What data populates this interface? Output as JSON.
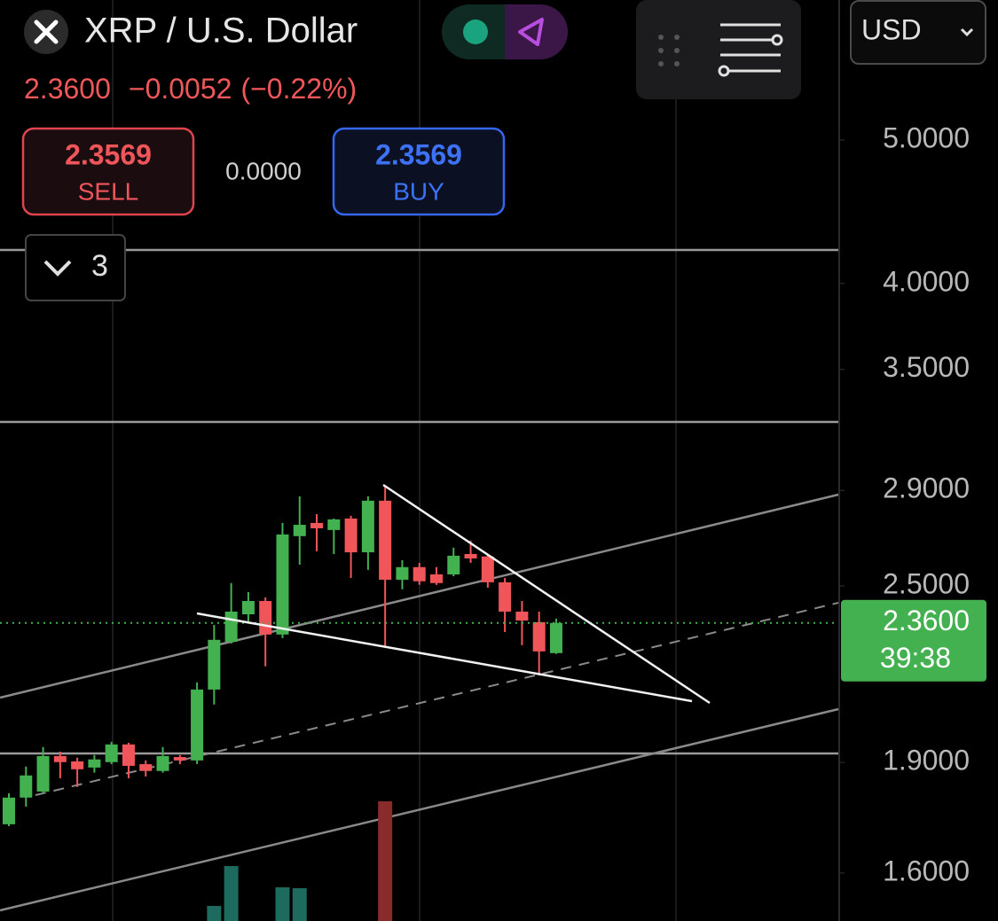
{
  "header": {
    "title": "XRP / U.S. Dollar",
    "price": "2.3600",
    "change": "−0.0052",
    "change_pct": "(−0.22%)",
    "currency": "USD"
  },
  "trade": {
    "sell_price": "2.3569",
    "sell_label": "SELL",
    "spread": "0.0000",
    "buy_price": "2.3569",
    "buy_label": "BUY"
  },
  "indicators": {
    "count": "3"
  },
  "chart_data": {
    "type": "candlestick",
    "log_scale": true,
    "ylim": [
      1.485,
      6.215
    ],
    "yticks": [
      {
        "value": 5,
        "label": "5.0000"
      },
      {
        "value": 4,
        "label": "4.0000"
      },
      {
        "value": 3.5,
        "label": "3.5000"
      },
      {
        "value": 2.9,
        "label": "2.9000"
      },
      {
        "value": 2.5,
        "label": "2.5000"
      },
      {
        "value": 1.9,
        "label": "1.9000"
      },
      {
        "value": 1.6,
        "label": "1.6000"
      }
    ],
    "up_color": "#43b14f",
    "down_color": "#f0555a",
    "open": [
      1.726,
      1.799,
      1.816,
      1.919,
      1.903,
      1.885,
      1.901,
      1.954,
      1.895,
      1.875,
      1.916,
      1.906,
      2.128,
      2.292,
      2.392,
      2.442,
      2.318,
      2.701,
      2.757,
      2.727,
      2.776,
      2.634,
      2.854,
      2.524,
      2.574,
      2.545,
      2.545,
      2.627,
      2.617,
      2.514,
      2.402,
      2.363,
      2.252
    ],
    "high": [
      1.811,
      1.888,
      1.946,
      1.932,
      1.914,
      1.922,
      1.962,
      1.959,
      1.906,
      1.946,
      1.922,
      2.152,
      2.353,
      2.511,
      2.476,
      2.456,
      2.757,
      2.873,
      2.795,
      2.776,
      2.788,
      2.873,
      2.922,
      2.602,
      2.591,
      2.574,
      2.653,
      2.682,
      2.627,
      2.531,
      2.442,
      2.402,
      2.376
    ],
    "low": [
      1.721,
      1.774,
      1.811,
      1.854,
      1.829,
      1.87,
      1.895,
      1.854,
      1.859,
      1.87,
      1.895,
      1.895,
      2.079,
      2.286,
      2.363,
      2.206,
      2.305,
      2.584,
      2.638,
      2.627,
      2.531,
      2.563,
      2.273,
      2.487,
      2.504,
      2.504,
      2.538,
      2.591,
      2.493,
      2.327,
      2.28,
      2.175,
      2.249
    ],
    "close": [
      1.799,
      1.862,
      1.919,
      1.901,
      1.88,
      1.909,
      1.954,
      1.89,
      1.875,
      1.919,
      1.906,
      2.128,
      2.299,
      2.402,
      2.442,
      2.318,
      2.708,
      2.749,
      2.734,
      2.772,
      2.634,
      2.854,
      2.524,
      2.574,
      2.518,
      2.511,
      2.62,
      2.609,
      2.514,
      2.402,
      2.369,
      2.258,
      2.36
    ],
    "volume": [
      null,
      null,
      null,
      null,
      null,
      null,
      null,
      null,
      null,
      null,
      null,
      null,
      17,
      62,
      null,
      null,
      38,
      37,
      null,
      null,
      null,
      null,
      135,
      null,
      null,
      null,
      null,
      null,
      null,
      null,
      null,
      null,
      null
    ],
    "last_price": {
      "value": 2.36,
      "label": "2.3600"
    },
    "countdown": "39:38"
  }
}
